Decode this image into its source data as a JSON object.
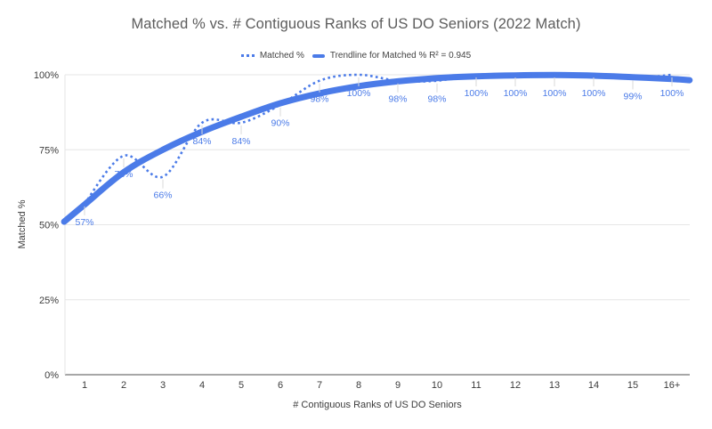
{
  "chart_data": {
    "type": "line",
    "title": "Matched % vs. # Contiguous Ranks of US DO Seniors (2022 Match)",
    "xlabel": "# Contiguous Ranks of US DO Seniors",
    "ylabel": "Matched %",
    "categories": [
      "1",
      "2",
      "3",
      "4",
      "5",
      "6",
      "7",
      "8",
      "9",
      "10",
      "11",
      "12",
      "13",
      "14",
      "15",
      "16+"
    ],
    "series": [
      {
        "name": "Matched %",
        "style": "dotted",
        "values": [
          57,
          73,
          66,
          84,
          84,
          90,
          98,
          100,
          98,
          98,
          100,
          100,
          100,
          100,
          99,
          100
        ],
        "data_labels": [
          "57%",
          "73%",
          "66%",
          "84%",
          "84%",
          "90%",
          "98%",
          "100%",
          "98%",
          "98%",
          "100%",
          "100%",
          "100%",
          "100%",
          "99%",
          "100%"
        ]
      }
    ],
    "trendline": {
      "name": "Trendline for Matched %",
      "r_squared": 0.945,
      "label": "Trendline for Matched % R² = 0.945",
      "points": [
        [
          0.48,
          51
        ],
        [
          1,
          56.7
        ],
        [
          2,
          67.5
        ],
        [
          3,
          75
        ],
        [
          4,
          81
        ],
        [
          5,
          86
        ],
        [
          6,
          90.5
        ],
        [
          7,
          93.8
        ],
        [
          8,
          96.2
        ],
        [
          9,
          97.8
        ],
        [
          10,
          98.9
        ],
        [
          11,
          99.5
        ],
        [
          12,
          99.8
        ],
        [
          13,
          99.9
        ],
        [
          14,
          99.7
        ],
        [
          15,
          99.2
        ],
        [
          16,
          98.6
        ],
        [
          16.45,
          98.2
        ]
      ]
    },
    "legend": [
      {
        "label": "Matched %"
      },
      {
        "label": "Trendline for Matched % R² = 0.945"
      }
    ],
    "legend_position": "top",
    "grid": "horizontal",
    "ylim": [
      0,
      100
    ],
    "yticks": {
      "values": [
        0,
        25,
        50,
        75,
        100
      ],
      "labels": [
        "0%",
        "25%",
        "50%",
        "75%",
        "100%"
      ]
    },
    "colors": {
      "accent": "#4b7be8",
      "data_label": "#4b7be8",
      "gridline": "#e6e6e6",
      "axis_line": "#8a8a8a",
      "tick_text": "#3c3c3c",
      "title_text": "#5c5c5c",
      "legend_text": "#424242",
      "leader_line": "#d9d9d9",
      "background": "#ffffff"
    }
  }
}
